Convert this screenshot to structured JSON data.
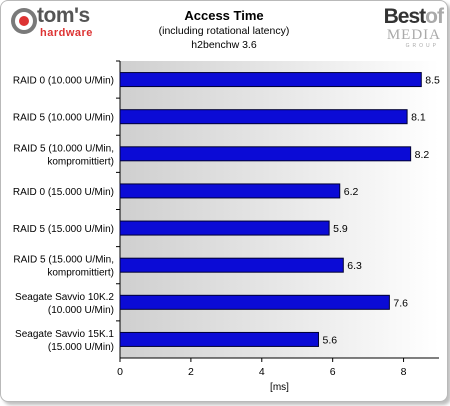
{
  "logo_left": {
    "name": "tom's",
    "sub": "hardware"
  },
  "logo_right": {
    "best": "Best",
    "of": "of",
    "media": "MEDIA",
    "group": "GROUP"
  },
  "colors": {
    "bar": "#0b0bd6",
    "bar_edge": "#000033",
    "plot_left": "#cfcfcf",
    "plot_right": "#ffffff"
  },
  "chart_data": {
    "type": "bar",
    "orientation": "horizontal",
    "title": "Access Time",
    "subtitle": "(including rotational latency)",
    "subtitle2": "h2benchw 3.6",
    "xlabel": "[ms]",
    "xlim": [
      0,
      9
    ],
    "xticks": [
      "0",
      "2",
      "4",
      "6",
      "8"
    ],
    "categories": [
      "RAID 0 (10.000 U/Min)",
      "RAID 5 (10.000 U/Min)",
      "RAID 5 (10.000 U/Min,\nkompromittiert)",
      "RAID 0 (15.000 U/Min)",
      "RAID 5 (15.000 U/Min)",
      "RAID 5 (15.000 U/Min,\nkompromittiert)",
      "Seagate Savvio 10K.2\n(10.000 U/Min)",
      "Seagate Savvio 15K.1\n(15.000 U/Min)"
    ],
    "values": [
      8.5,
      8.1,
      8.2,
      6.2,
      5.9,
      6.3,
      7.6,
      5.6
    ],
    "value_labels": [
      "8.5",
      "8.1",
      "8.2",
      "6.2",
      "5.9",
      "6.3",
      "7.6",
      "5.6"
    ],
    "grid": false,
    "legend": "none"
  }
}
